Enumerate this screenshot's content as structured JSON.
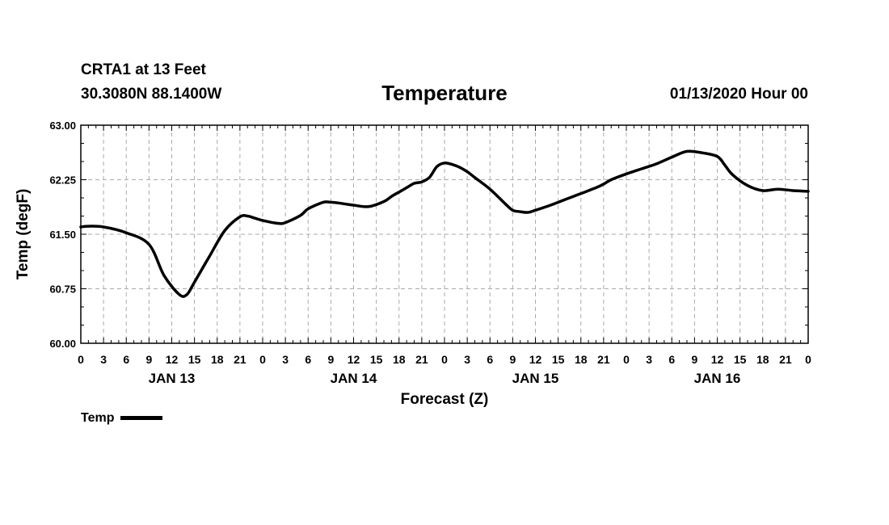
{
  "header": {
    "station": "CRTA1 at 13 Feet",
    "coords": "30.3080N 88.1400W",
    "datetime": "01/13/2020 Hour 00"
  },
  "legend": {
    "label": "Temp"
  },
  "chart_data": {
    "type": "line",
    "title": "Temperature",
    "xlabel": "Forecast (Z)",
    "ylabel": "Temp (degF)",
    "ylim": [
      60.0,
      63.0
    ],
    "xlim": [
      0,
      96
    ],
    "x_unit": "forecast hours",
    "yticks": [
      "60.00",
      "60.75",
      "61.50",
      "62.25",
      "63.00"
    ],
    "ytick_values": [
      60.0,
      60.75,
      61.5,
      62.25,
      63.0
    ],
    "xtick_labels": [
      "0",
      "3",
      "6",
      "9",
      "12",
      "15",
      "18",
      "21",
      "0",
      "3",
      "6",
      "9",
      "12",
      "15",
      "18",
      "21",
      "0",
      "3",
      "6",
      "9",
      "12",
      "15",
      "18",
      "21",
      "0",
      "3",
      "6",
      "9",
      "12",
      "15",
      "18",
      "21",
      "0"
    ],
    "day_labels": [
      {
        "label": "JAN 13",
        "hour": 12
      },
      {
        "label": "JAN 14",
        "hour": 36
      },
      {
        "label": "JAN 15",
        "hour": 60
      },
      {
        "label": "JAN 16",
        "hour": 84
      }
    ],
    "grid": true,
    "series": [
      {
        "name": "Temp",
        "color": "#000000",
        "x": [
          0,
          1,
          3,
          6,
          9,
          11,
          13,
          14,
          15,
          17,
          19,
          21,
          22,
          23,
          24,
          26,
          27,
          29,
          30,
          32,
          33,
          34,
          36,
          38,
          40,
          41,
          42,
          43,
          44,
          45,
          46,
          47,
          48,
          49,
          50,
          51,
          52,
          54,
          56,
          57,
          58,
          59,
          60,
          62,
          64,
          65,
          66,
          68,
          69,
          70,
          72,
          74,
          76,
          78,
          80,
          82,
          84,
          85,
          86,
          88,
          90,
          92,
          94,
          96
        ],
        "values": [
          61.6,
          61.61,
          61.6,
          61.52,
          61.36,
          60.93,
          60.67,
          60.67,
          60.84,
          61.2,
          61.55,
          61.74,
          61.75,
          61.72,
          61.69,
          61.65,
          61.66,
          61.76,
          61.85,
          61.94,
          61.94,
          61.93,
          61.9,
          61.88,
          61.95,
          62.02,
          62.08,
          62.14,
          62.2,
          62.22,
          62.28,
          62.43,
          62.48,
          62.46,
          62.42,
          62.36,
          62.28,
          62.12,
          61.92,
          61.83,
          61.81,
          61.8,
          61.83,
          61.9,
          61.98,
          62.02,
          62.06,
          62.14,
          62.19,
          62.25,
          62.33,
          62.4,
          62.47,
          62.56,
          62.64,
          62.62,
          62.57,
          62.45,
          62.32,
          62.17,
          62.1,
          62.12,
          62.1,
          62.09
        ]
      }
    ]
  }
}
